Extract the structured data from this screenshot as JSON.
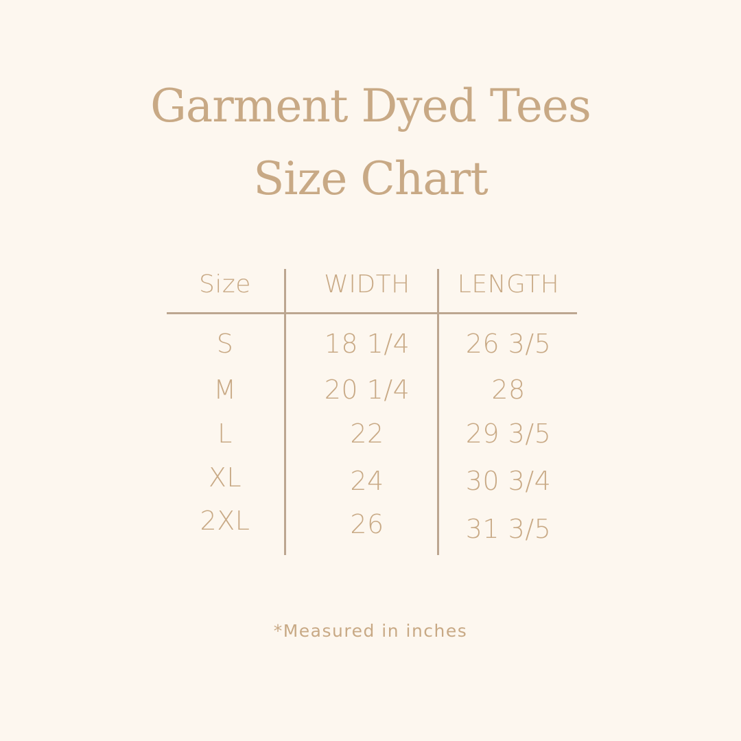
{
  "title": {
    "line1": "Garment Dyed Tees",
    "line2": "Size Chart"
  },
  "colors": {
    "background": "#fdf7ef",
    "text": "#c8a985",
    "rules": "#bca690"
  },
  "chart_data": {
    "type": "table",
    "columns": [
      "Size",
      "WIDTH",
      "LENGTH"
    ],
    "rows": [
      [
        "S",
        "18 1/4",
        "26 3/5"
      ],
      [
        "M",
        "20 1/4",
        "28"
      ],
      [
        "L",
        "22",
        "29 3/5"
      ],
      [
        "XL",
        "24",
        "30 3/4"
      ],
      [
        "2XL",
        "26",
        "31 3/5"
      ]
    ]
  },
  "footnote": "*Measured in inches"
}
